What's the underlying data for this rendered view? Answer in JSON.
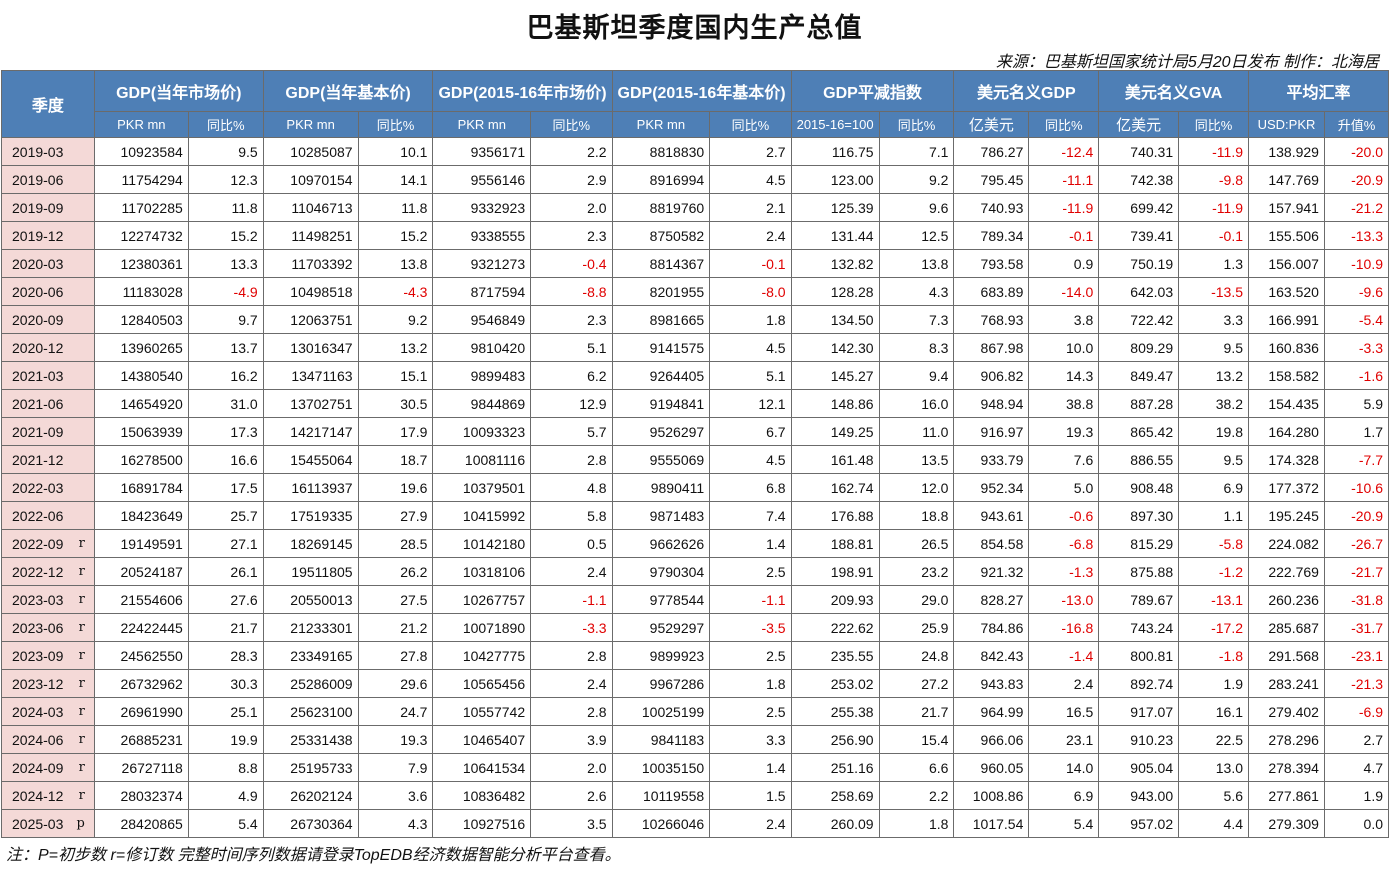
{
  "title": "巴基斯坦季度国内生产总值",
  "source": "来源：巴基斯坦国家统计局5月20日发布 制作：北海居",
  "header": {
    "period": "季度",
    "groups": [
      "GDP(当年市场价)",
      "GDP(当年基本价)",
      "GDP(2015-16年市场价)",
      "GDP(2015-16年基本价)",
      "GDP平减指数",
      "美元名义GDP",
      "美元名义GVA",
      "平均汇率"
    ],
    "subs": [
      "PKR mn",
      "同比%",
      "PKR mn",
      "同比%",
      "PKR mn",
      "同比%",
      "PKR mn",
      "同比%",
      "2015-16=100",
      "同比%",
      "亿美元",
      "同比%",
      "亿美元",
      "同比%",
      "USD:PKR",
      "升值%"
    ]
  },
  "rows": [
    {
      "period": "2019-03",
      "flag": "",
      "cells": [
        "10923584",
        "9.5",
        "10285087",
        "10.1",
        "9356171",
        "2.2",
        "8818830",
        "2.7",
        "116.75",
        "7.1",
        "786.27",
        "-12.4",
        "740.31",
        "-11.9",
        "138.929",
        "-20.0"
      ]
    },
    {
      "period": "2019-06",
      "flag": "",
      "cells": [
        "11754294",
        "12.3",
        "10970154",
        "14.1",
        "9556146",
        "2.9",
        "8916994",
        "4.5",
        "123.00",
        "9.2",
        "795.45",
        "-11.1",
        "742.38",
        "-9.8",
        "147.769",
        "-20.9"
      ]
    },
    {
      "period": "2019-09",
      "flag": "",
      "cells": [
        "11702285",
        "11.8",
        "11046713",
        "11.8",
        "9332923",
        "2.0",
        "8819760",
        "2.1",
        "125.39",
        "9.6",
        "740.93",
        "-11.9",
        "699.42",
        "-11.9",
        "157.941",
        "-21.2"
      ]
    },
    {
      "period": "2019-12",
      "flag": "",
      "cells": [
        "12274732",
        "15.2",
        "11498251",
        "15.2",
        "9338555",
        "2.3",
        "8750582",
        "2.4",
        "131.44",
        "12.5",
        "789.34",
        "-0.1",
        "739.41",
        "-0.1",
        "155.506",
        "-13.3"
      ]
    },
    {
      "period": "2020-03",
      "flag": "",
      "cells": [
        "12380361",
        "13.3",
        "11703392",
        "13.8",
        "9321273",
        "-0.4",
        "8814367",
        "-0.1",
        "132.82",
        "13.8",
        "793.58",
        "0.9",
        "750.19",
        "1.3",
        "156.007",
        "-10.9"
      ]
    },
    {
      "period": "2020-06",
      "flag": "",
      "cells": [
        "11183028",
        "-4.9",
        "10498518",
        "-4.3",
        "8717594",
        "-8.8",
        "8201955",
        "-8.0",
        "128.28",
        "4.3",
        "683.89",
        "-14.0",
        "642.03",
        "-13.5",
        "163.520",
        "-9.6"
      ]
    },
    {
      "period": "2020-09",
      "flag": "",
      "cells": [
        "12840503",
        "9.7",
        "12063751",
        "9.2",
        "9546849",
        "2.3",
        "8981665",
        "1.8",
        "134.50",
        "7.3",
        "768.93",
        "3.8",
        "722.42",
        "3.3",
        "166.991",
        "-5.4"
      ]
    },
    {
      "period": "2020-12",
      "flag": "",
      "cells": [
        "13960265",
        "13.7",
        "13016347",
        "13.2",
        "9810420",
        "5.1",
        "9141575",
        "4.5",
        "142.30",
        "8.3",
        "867.98",
        "10.0",
        "809.29",
        "9.5",
        "160.836",
        "-3.3"
      ]
    },
    {
      "period": "2021-03",
      "flag": "",
      "cells": [
        "14380540",
        "16.2",
        "13471163",
        "15.1",
        "9899483",
        "6.2",
        "9264405",
        "5.1",
        "145.27",
        "9.4",
        "906.82",
        "14.3",
        "849.47",
        "13.2",
        "158.582",
        "-1.6"
      ]
    },
    {
      "period": "2021-06",
      "flag": "",
      "cells": [
        "14654920",
        "31.0",
        "13702751",
        "30.5",
        "9844869",
        "12.9",
        "9194841",
        "12.1",
        "148.86",
        "16.0",
        "948.94",
        "38.8",
        "887.28",
        "38.2",
        "154.435",
        "5.9"
      ]
    },
    {
      "period": "2021-09",
      "flag": "",
      "cells": [
        "15063939",
        "17.3",
        "14217147",
        "17.9",
        "10093323",
        "5.7",
        "9526297",
        "6.7",
        "149.25",
        "11.0",
        "916.97",
        "19.3",
        "865.42",
        "19.8",
        "164.280",
        "1.7"
      ]
    },
    {
      "period": "2021-12",
      "flag": "",
      "cells": [
        "16278500",
        "16.6",
        "15455064",
        "18.7",
        "10081116",
        "2.8",
        "9555069",
        "4.5",
        "161.48",
        "13.5",
        "933.79",
        "7.6",
        "886.55",
        "9.5",
        "174.328",
        "-7.7"
      ]
    },
    {
      "period": "2022-03",
      "flag": "",
      "cells": [
        "16891784",
        "17.5",
        "16113937",
        "19.6",
        "10379501",
        "4.8",
        "9890411",
        "6.8",
        "162.74",
        "12.0",
        "952.34",
        "5.0",
        "908.48",
        "6.9",
        "177.372",
        "-10.6"
      ]
    },
    {
      "period": "2022-06",
      "flag": "",
      "cells": [
        "18423649",
        "25.7",
        "17519335",
        "27.9",
        "10415992",
        "5.8",
        "9871483",
        "7.4",
        "176.88",
        "18.8",
        "943.61",
        "-0.6",
        "897.30",
        "1.1",
        "195.245",
        "-20.9"
      ]
    },
    {
      "period": "2022-09",
      "flag": "r",
      "cells": [
        "19149591",
        "27.1",
        "18269145",
        "28.5",
        "10142180",
        "0.5",
        "9662626",
        "1.4",
        "188.81",
        "26.5",
        "854.58",
        "-6.8",
        "815.29",
        "-5.8",
        "224.082",
        "-26.7"
      ]
    },
    {
      "period": "2022-12",
      "flag": "r",
      "cells": [
        "20524187",
        "26.1",
        "19511805",
        "26.2",
        "10318106",
        "2.4",
        "9790304",
        "2.5",
        "198.91",
        "23.2",
        "921.32",
        "-1.3",
        "875.88",
        "-1.2",
        "222.769",
        "-21.7"
      ]
    },
    {
      "period": "2023-03",
      "flag": "r",
      "cells": [
        "21554606",
        "27.6",
        "20550013",
        "27.5",
        "10267757",
        "-1.1",
        "9778544",
        "-1.1",
        "209.93",
        "29.0",
        "828.27",
        "-13.0",
        "789.67",
        "-13.1",
        "260.236",
        "-31.8"
      ]
    },
    {
      "period": "2023-06",
      "flag": "r",
      "cells": [
        "22422445",
        "21.7",
        "21233301",
        "21.2",
        "10071890",
        "-3.3",
        "9529297",
        "-3.5",
        "222.62",
        "25.9",
        "784.86",
        "-16.8",
        "743.24",
        "-17.2",
        "285.687",
        "-31.7"
      ]
    },
    {
      "period": "2023-09",
      "flag": "r",
      "cells": [
        "24562550",
        "28.3",
        "23349165",
        "27.8",
        "10427775",
        "2.8",
        "9899923",
        "2.5",
        "235.55",
        "24.8",
        "842.43",
        "-1.4",
        "800.81",
        "-1.8",
        "291.568",
        "-23.1"
      ]
    },
    {
      "period": "2023-12",
      "flag": "r",
      "cells": [
        "26732962",
        "30.3",
        "25286009",
        "29.6",
        "10565456",
        "2.4",
        "9967286",
        "1.8",
        "253.02",
        "27.2",
        "943.83",
        "2.4",
        "892.74",
        "1.9",
        "283.241",
        "-21.3"
      ]
    },
    {
      "period": "2024-03",
      "flag": "r",
      "cells": [
        "26961990",
        "25.1",
        "25623100",
        "24.7",
        "10557742",
        "2.8",
        "10025199",
        "2.5",
        "255.38",
        "21.7",
        "964.99",
        "16.5",
        "917.07",
        "16.1",
        "279.402",
        "-6.9"
      ]
    },
    {
      "period": "2024-06",
      "flag": "r",
      "cells": [
        "26885231",
        "19.9",
        "25331438",
        "19.3",
        "10465407",
        "3.9",
        "9841183",
        "3.3",
        "256.90",
        "15.4",
        "966.06",
        "23.1",
        "910.23",
        "22.5",
        "278.296",
        "2.7"
      ]
    },
    {
      "period": "2024-09",
      "flag": "r",
      "cells": [
        "26727118",
        "8.8",
        "25195733",
        "7.9",
        "10641534",
        "2.0",
        "10035150",
        "1.4",
        "251.16",
        "6.6",
        "960.05",
        "14.0",
        "905.04",
        "13.0",
        "278.394",
        "4.7"
      ]
    },
    {
      "period": "2024-12",
      "flag": "r",
      "cells": [
        "28032374",
        "4.9",
        "26202124",
        "3.6",
        "10836482",
        "2.6",
        "10119558",
        "1.5",
        "258.69",
        "2.2",
        "1008.86",
        "6.9",
        "943.00",
        "5.6",
        "277.861",
        "1.9"
      ]
    },
    {
      "period": "2025-03",
      "flag": "p",
      "cells": [
        "28420865",
        "5.4",
        "26730364",
        "4.3",
        "10927516",
        "3.5",
        "10266046",
        "2.4",
        "260.09",
        "1.8",
        "1017.54",
        "5.4",
        "957.02",
        "4.4",
        "279.309",
        "0.0"
      ]
    }
  ],
  "colors": {
    "header_bg": "#4e7fb6",
    "period_bg": "#f4d9d7",
    "negative": "#e00000"
  },
  "note": "注：P=初步数 r=修订数 完整时间序列数据请登录TopEDB经济数据智能分析平台查看。"
}
